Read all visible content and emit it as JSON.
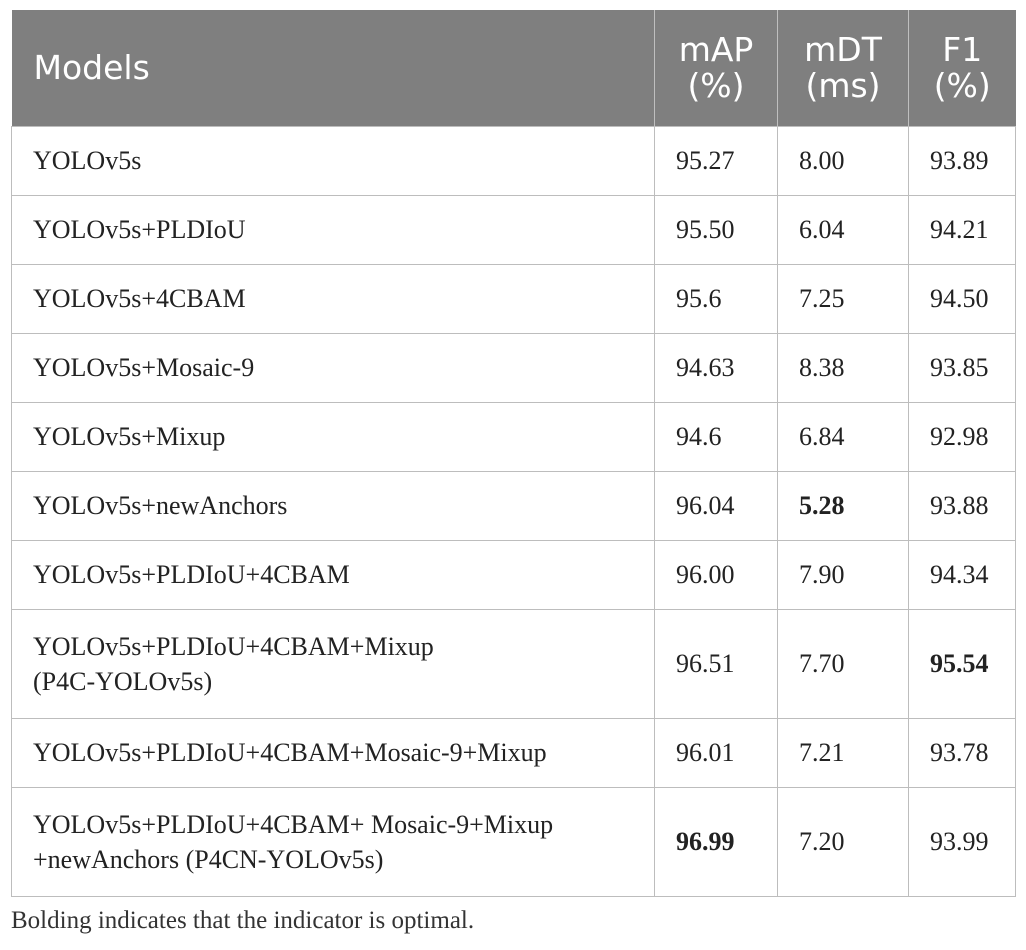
{
  "table": {
    "headers": {
      "model": "Models",
      "map": [
        "mAP",
        "(%)"
      ],
      "mdt": [
        "mDT",
        "(ms)"
      ],
      "f1": [
        "F1",
        "(%)"
      ]
    },
    "rows": [
      {
        "model": [
          "YOLOv5s"
        ],
        "map": "95.27",
        "mdt": "8.00",
        "f1": "93.89",
        "bold": []
      },
      {
        "model": [
          "YOLOv5s+PLDIoU"
        ],
        "map": "95.50",
        "mdt": "6.04",
        "f1": "94.21",
        "bold": []
      },
      {
        "model": [
          "YOLOv5s+4CBAM"
        ],
        "map": "95.6",
        "mdt": "7.25",
        "f1": "94.50",
        "bold": []
      },
      {
        "model": [
          "YOLOv5s+Mosaic-9"
        ],
        "map": "94.63",
        "mdt": "8.38",
        "f1": "93.85",
        "bold": []
      },
      {
        "model": [
          "YOLOv5s+Mixup"
        ],
        "map": "94.6",
        "mdt": "6.84",
        "f1": "92.98",
        "bold": []
      },
      {
        "model": [
          "YOLOv5s+newAnchors"
        ],
        "map": "96.04",
        "mdt": "5.28",
        "f1": "93.88",
        "bold": [
          "mdt"
        ]
      },
      {
        "model": [
          "YOLOv5s+PLDIoU+4CBAM"
        ],
        "map": "96.00",
        "mdt": "7.90",
        "f1": "94.34",
        "bold": []
      },
      {
        "model": [
          "YOLOv5s+PLDIoU+4CBAM+Mixup",
          "(P4C-YOLOv5s)"
        ],
        "map": "96.51",
        "mdt": "7.70",
        "f1": "95.54",
        "bold": [
          "f1"
        ]
      },
      {
        "model": [
          "YOLOv5s+PLDIoU+4CBAM+Mosaic-9+Mixup"
        ],
        "map": "96.01",
        "mdt": "7.21",
        "f1": "93.78",
        "bold": []
      },
      {
        "model": [
          "YOLOv5s+PLDIoU+4CBAM+ Mosaic-9+Mixup",
          "+newAnchors (P4CN-YOLOv5s)"
        ],
        "map": "96.99",
        "mdt": "7.20",
        "f1": "93.99",
        "bold": [
          "map"
        ]
      }
    ]
  },
  "footnote": "Bolding indicates that the indicator is optimal."
}
